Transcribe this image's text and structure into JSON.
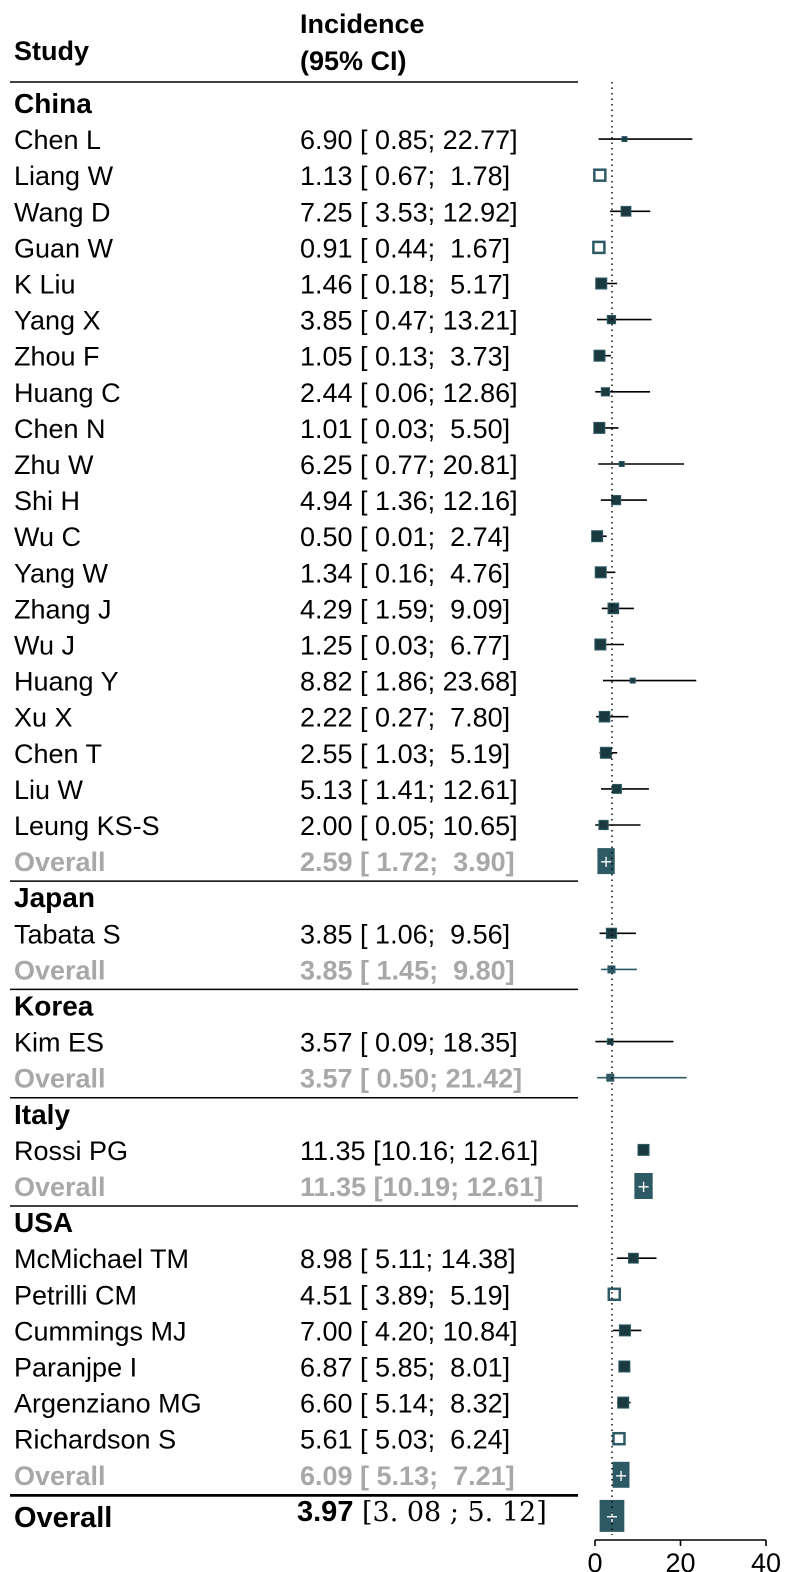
{
  "header": {
    "study_label": "Study",
    "estimate_label_line1": "Incidence",
    "estimate_label_line2": "(95% CI)"
  },
  "colors": {
    "study_marker": "#1a3a40",
    "summary_fill": "#2e5a66",
    "summary_text": "#a8a8a8",
    "line": "#000000"
  },
  "chart_data": {
    "type": "forest",
    "x_axis": {
      "ticks": [
        0,
        20,
        40
      ],
      "min": 0,
      "max": 40,
      "reference_line": 3.97,
      "reference_style": "dotted"
    },
    "groups": [
      {
        "name": "China",
        "studies": [
          {
            "study": "Chen L",
            "est": 6.9,
            "lo": 0.85,
            "hi": 22.77,
            "label": "6.90 [ 0.85; 22.77]"
          },
          {
            "study": "Liang W",
            "est": 1.13,
            "lo": 0.67,
            "hi": 1.78,
            "label": "1.13 [ 0.67;  1.78]"
          },
          {
            "study": "Wang D",
            "est": 7.25,
            "lo": 3.53,
            "hi": 12.92,
            "label": "7.25 [ 3.53; 12.92]"
          },
          {
            "study": "Guan W",
            "est": 0.91,
            "lo": 0.44,
            "hi": 1.67,
            "label": "0.91 [ 0.44;  1.67]"
          },
          {
            "study": "K Liu",
            "est": 1.46,
            "lo": 0.18,
            "hi": 5.17,
            "label": "1.46 [ 0.18;  5.17]"
          },
          {
            "study": "Yang X",
            "est": 3.85,
            "lo": 0.47,
            "hi": 13.21,
            "label": "3.85 [ 0.47; 13.21]"
          },
          {
            "study": "Zhou F",
            "est": 1.05,
            "lo": 0.13,
            "hi": 3.73,
            "label": "1.05 [ 0.13;  3.73]"
          },
          {
            "study": "Huang C",
            "est": 2.44,
            "lo": 0.06,
            "hi": 12.86,
            "label": "2.44 [ 0.06; 12.86]"
          },
          {
            "study": "Chen N",
            "est": 1.01,
            "lo": 0.03,
            "hi": 5.5,
            "label": "1.01 [ 0.03;  5.50]"
          },
          {
            "study": "Zhu W",
            "est": 6.25,
            "lo": 0.77,
            "hi": 20.81,
            "label": "6.25 [ 0.77; 20.81]"
          },
          {
            "study": "Shi H",
            "est": 4.94,
            "lo": 1.36,
            "hi": 12.16,
            "label": "4.94 [ 1.36; 12.16]"
          },
          {
            "study": "Wu C",
            "est": 0.5,
            "lo": 0.01,
            "hi": 2.74,
            "label": "0.50 [ 0.01;  2.74]"
          },
          {
            "study": "Yang W",
            "est": 1.34,
            "lo": 0.16,
            "hi": 4.76,
            "label": "1.34 [ 0.16;  4.76]"
          },
          {
            "study": "Zhang J",
            "est": 4.29,
            "lo": 1.59,
            "hi": 9.09,
            "label": "4.29 [ 1.59;  9.09]"
          },
          {
            "study": "Wu J",
            "est": 1.25,
            "lo": 0.03,
            "hi": 6.77,
            "label": "1.25 [ 0.03;  6.77]"
          },
          {
            "study": "Huang Y",
            "est": 8.82,
            "lo": 1.86,
            "hi": 23.68,
            "label": "8.82 [ 1.86; 23.68]"
          },
          {
            "study": "Xu X",
            "est": 2.22,
            "lo": 0.27,
            "hi": 7.8,
            "label": "2.22 [ 0.27;  7.80]"
          },
          {
            "study": "Chen T",
            "est": 2.55,
            "lo": 1.03,
            "hi": 5.19,
            "label": "2.55 [ 1.03;  5.19]"
          },
          {
            "study": "Liu W",
            "est": 5.13,
            "lo": 1.41,
            "hi": 12.61,
            "label": "5.13 [ 1.41; 12.61]"
          },
          {
            "study": "Leung KS-S",
            "est": 2.0,
            "lo": 0.05,
            "hi": 10.65,
            "label": "2.00 [ 0.05; 10.65]"
          }
        ],
        "overall": {
          "label_text": "Overall",
          "est": 2.59,
          "lo": 1.72,
          "hi": 3.9,
          "label": "2.59 [ 1.72;  3.90]"
        }
      },
      {
        "name": "Japan",
        "studies": [
          {
            "study": "Tabata S",
            "est": 3.85,
            "lo": 1.06,
            "hi": 9.56,
            "label": "3.85 [ 1.06;  9.56]"
          }
        ],
        "overall": {
          "label_text": "Overall",
          "est": 3.85,
          "lo": 1.45,
          "hi": 9.8,
          "label": "3.85 [ 1.45;  9.80]"
        }
      },
      {
        "name": "Korea",
        "studies": [
          {
            "study": "Kim ES",
            "est": 3.57,
            "lo": 0.09,
            "hi": 18.35,
            "label": "3.57 [ 0.09; 18.35]"
          }
        ],
        "overall": {
          "label_text": "Overall",
          "est": 3.57,
          "lo": 0.5,
          "hi": 21.42,
          "label": "3.57 [ 0.50; 21.42]"
        }
      },
      {
        "name": "Italy",
        "studies": [
          {
            "study": "Rossi PG",
            "est": 11.35,
            "lo": 10.16,
            "hi": 12.61,
            "label": "11.35 [10.16; 12.61]"
          }
        ],
        "overall": {
          "label_text": "Overall",
          "est": 11.35,
          "lo": 10.19,
          "hi": 12.61,
          "label": "11.35 [10.19; 12.61]"
        }
      },
      {
        "name": "USA",
        "studies": [
          {
            "study": "McMichael TM",
            "est": 8.98,
            "lo": 5.11,
            "hi": 14.38,
            "label": "8.98 [ 5.11; 14.38]"
          },
          {
            "study": "Petrilli CM",
            "est": 4.51,
            "lo": 3.89,
            "hi": 5.19,
            "label": "4.51 [ 3.89;  5.19]"
          },
          {
            "study": "Cummings MJ",
            "est": 7.0,
            "lo": 4.2,
            "hi": 10.84,
            "label": "7.00 [ 4.20; 10.84]"
          },
          {
            "study": "Paranjpe I",
            "est": 6.87,
            "lo": 5.85,
            "hi": 8.01,
            "label": "6.87 [ 5.85;  8.01]"
          },
          {
            "study": "Argenziano MG",
            "est": 6.6,
            "lo": 5.14,
            "hi": 8.32,
            "label": "6.60 [ 5.14;  8.32]"
          },
          {
            "study": "Richardson S",
            "est": 5.61,
            "lo": 5.03,
            "hi": 6.24,
            "label": "5.61 [ 5.03;  6.24]"
          }
        ],
        "overall": {
          "label_text": "Overall",
          "est": 6.09,
          "lo": 5.13,
          "hi": 7.21,
          "label": "6.09 [ 5.13;  7.21]"
        }
      }
    ],
    "total": {
      "label_text": "Overall",
      "est": 3.97,
      "lo": 3.08,
      "hi": 5.12,
      "est_text": "3.97",
      "ci_text": "[3. 08 ; 5. 12]"
    }
  }
}
